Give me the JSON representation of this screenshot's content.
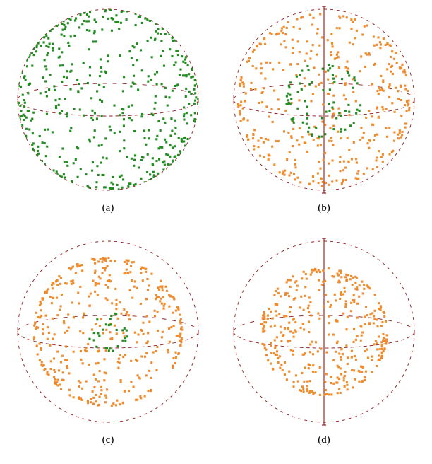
{
  "panels": [
    {
      "label": "(a)",
      "outer_radius": 1.0,
      "show_vertical_axis": false,
      "show_equator": true,
      "green": {
        "n": 500,
        "radius_scale": 1.0,
        "color": "#228b22"
      },
      "orange": {
        "n": 0,
        "radius_scale": 1.0,
        "color": "#f08c2e"
      }
    },
    {
      "label": "(b)",
      "outer_radius": 1.0,
      "show_vertical_axis": true,
      "show_equator": true,
      "green": {
        "n": 80,
        "radius_scale": 0.42,
        "color": "#228b22"
      },
      "orange": {
        "n": 420,
        "radius_scale": 0.95,
        "color": "#f08c2e"
      }
    },
    {
      "label": "(c)",
      "outer_radius": 1.0,
      "show_vertical_axis": false,
      "show_equator": true,
      "green": {
        "n": 30,
        "radius_scale": 0.22,
        "color": "#228b22"
      },
      "orange": {
        "n": 420,
        "radius_scale": 0.82,
        "color": "#f08c2e"
      }
    },
    {
      "label": "(d)",
      "outer_radius": 1.0,
      "show_vertical_axis": true,
      "show_equator": true,
      "green": {
        "n": 0,
        "radius_scale": 0.0,
        "color": "#228b22"
      },
      "orange": {
        "n": 400,
        "radius_scale": 0.7,
        "color": "#f08c2e"
      }
    }
  ],
  "style": {
    "outline_color": "#8b1a1a",
    "outline_width": 0.9,
    "outline_dash": "4 5",
    "axis_color": "#8b1a1a",
    "axis_width": 1.1,
    "point_size": 3.1,
    "background_color": "#ffffff",
    "caption_fontsize": 15,
    "ellipse_ry_ratio": 0.18,
    "svg_viewbox": 270,
    "sphere_draw_radius": 128
  },
  "seeds": [
    11,
    23,
    37,
    53
  ]
}
